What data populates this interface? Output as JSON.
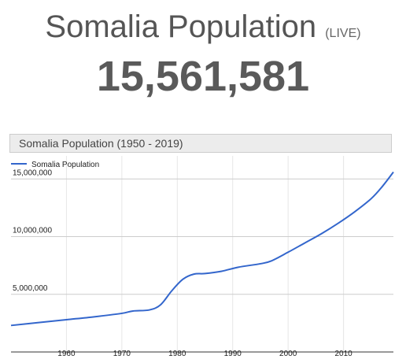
{
  "page": {
    "title": "Somalia Population",
    "live_label": "(LIVE)",
    "counter": "15,561,581"
  },
  "chart_data": {
    "type": "line",
    "title": "Somalia Population (1950 - 2019)",
    "xlabel": "",
    "ylabel": "",
    "legend": "top-left",
    "grid": true,
    "xlim": [
      1950,
      2019
    ],
    "ylim": [
      0,
      17000000
    ],
    "x_ticks": [
      1960,
      1970,
      1980,
      1990,
      2000,
      2010
    ],
    "x_tick_labels": [
      "1960",
      "1970",
      "1980",
      "1990",
      "2000",
      "2010"
    ],
    "y_ticks": [
      5000000,
      10000000,
      15000000
    ],
    "y_tick_labels": [
      "5,000,000",
      "10,000,000",
      "15,000,000"
    ],
    "series": [
      {
        "name": "Somalia Population",
        "color": "#3366cc",
        "x": [
          1950,
          1955,
          1960,
          1965,
          1970,
          1972,
          1975,
          1977,
          1979,
          1981,
          1983,
          1985,
          1988,
          1991,
          1995,
          1997,
          2000,
          2003,
          2006,
          2009,
          2012,
          2015,
          2017,
          2019
        ],
        "y": [
          2300000,
          2550000,
          2800000,
          3050000,
          3350000,
          3550000,
          3650000,
          4100000,
          5300000,
          6300000,
          6750000,
          6800000,
          7000000,
          7350000,
          7650000,
          7900000,
          8650000,
          9450000,
          10250000,
          11150000,
          12150000,
          13300000,
          14350000,
          15600000
        ]
      }
    ]
  }
}
